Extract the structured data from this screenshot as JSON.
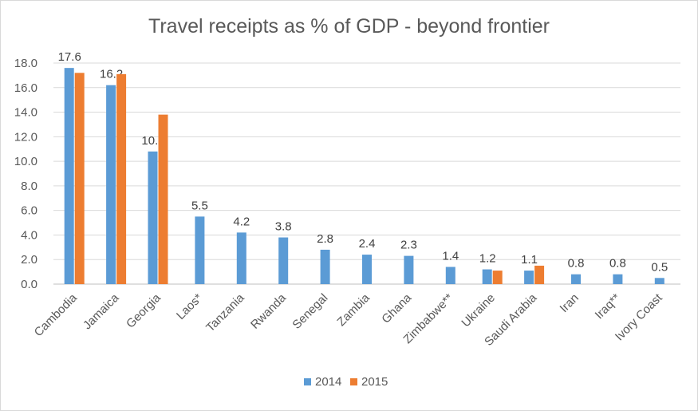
{
  "chart_data": {
    "type": "bar",
    "title": "Travel receipts as % of GDP - beyond frontier",
    "xlabel": "",
    "ylabel": "",
    "ylim": [
      0,
      18
    ],
    "yticks": [
      "0.0",
      "2.0",
      "4.0",
      "6.0",
      "8.0",
      "10.0",
      "12.0",
      "14.0",
      "16.0",
      "18.0"
    ],
    "categories": [
      "Cambodia",
      "Jamaica",
      "Georgia",
      "Laos*",
      "Tanzania",
      "Rwanda",
      "Senegal",
      "Zambia",
      "Ghana",
      "Zimbabwe**",
      "Ukraine",
      "Saudi Arabia",
      "Iran",
      "Iraq**",
      "Ivory Coast"
    ],
    "series": [
      {
        "name": "2014",
        "color": "#5B9BD5",
        "values": [
          17.6,
          16.2,
          10.8,
          5.5,
          4.2,
          3.8,
          2.8,
          2.4,
          2.3,
          1.4,
          1.2,
          1.1,
          0.8,
          0.8,
          0.5
        ],
        "data_labels": [
          "17.6",
          "16.2",
          "10.8",
          "5.5",
          "4.2",
          "3.8",
          "2.8",
          "2.4",
          "2.3",
          "1.4",
          "1.2",
          "1.1",
          "0.8",
          "0.8",
          "0.5"
        ]
      },
      {
        "name": "2015",
        "color": "#ED7D31",
        "values": [
          17.2,
          17.1,
          13.8,
          null,
          null,
          null,
          null,
          null,
          null,
          null,
          1.1,
          1.5,
          null,
          null,
          null
        ]
      }
    ],
    "grid": true,
    "legend": "bottom-center",
    "gridline_color": "#d9d9d9",
    "axis_color": "#bfbfbf"
  }
}
